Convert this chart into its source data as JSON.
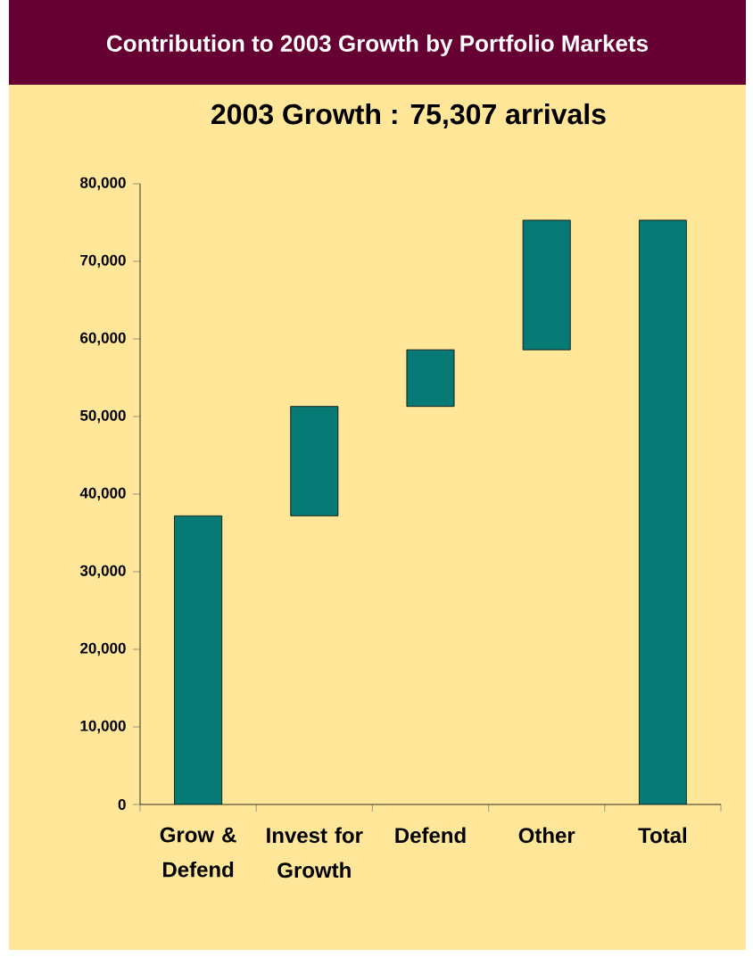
{
  "chart_data": {
    "type": "bar",
    "title": "Contribution to 2003 Growth by Portfolio Markets",
    "subtitle": "2003 Growth : 75,307 arrivals",
    "categories": [
      "Grow & Defend",
      "Invest for Growth",
      "Defend",
      "Other",
      "Total"
    ],
    "values": [
      37200,
      14100,
      7300,
      16700,
      75300
    ],
    "base": [
      0,
      37200,
      51300,
      58600,
      0
    ],
    "color": "#087a76",
    "ylim": [
      0,
      80000
    ],
    "yticks": [
      0,
      {
        "value": 10000,
        "label": "10,000"
      },
      {
        "value": 20000,
        "label": "20,000"
      },
      {
        "value": 30000,
        "label": "30,000"
      },
      {
        "value": 40000,
        "label": "40,000"
      },
      {
        "value": 50000,
        "label": "50,000"
      },
      {
        "value": 60000,
        "label": "60,000"
      },
      {
        "value": 70000,
        "label": "70,000"
      },
      {
        "value": 80000,
        "label": "80,000"
      }
    ],
    "grid": false
  }
}
